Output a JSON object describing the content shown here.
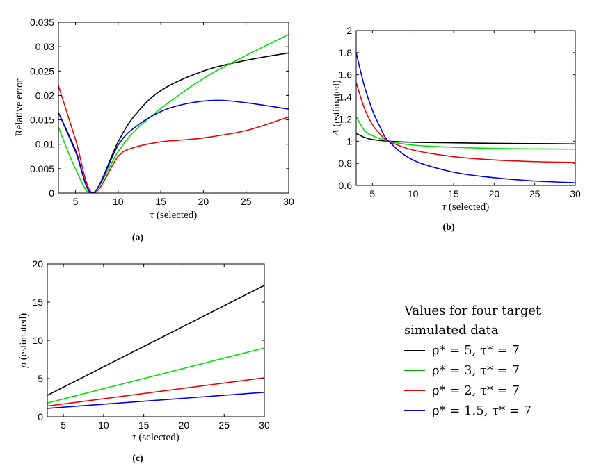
{
  "colors": {
    "black": "#000000",
    "green": "#00e000",
    "red": "#ee0000",
    "blue": "#0000ee",
    "axis": "#000000"
  },
  "legend": {
    "title_line1": "Values for four target",
    "title_line2": "simulated data",
    "entries": [
      {
        "label": "ρ* = 5, τ* = 7",
        "color": "#000000"
      },
      {
        "label": "ρ* = 3, τ* = 7",
        "color": "#00b000"
      },
      {
        "label": "ρ* = 2, τ* = 7",
        "color": "#ee0000"
      },
      {
        "label": "ρ* = 1.5, τ* = 7",
        "color": "#0000ee"
      }
    ]
  },
  "chart_data": [
    {
      "id": "a",
      "type": "line",
      "caption": "(a)",
      "xlabel": "τ (selected)",
      "ylabel": "Relative error",
      "xlim": [
        3,
        30
      ],
      "ylim": [
        0,
        0.035
      ],
      "xticks": [
        5,
        10,
        15,
        20,
        25,
        30
      ],
      "yticks": [
        0,
        0.005,
        0.01,
        0.015,
        0.02,
        0.025,
        0.03,
        0.035
      ],
      "ytick_labels": [
        "0",
        "0.005",
        "0.01",
        "0.015",
        "0.02",
        "0.025",
        "0.03",
        "0.035"
      ],
      "series": [
        {
          "name": "rho5",
          "color": "#000000",
          "x": [
            3,
            5,
            7,
            10,
            12,
            15,
            20,
            25,
            30
          ],
          "y": [
            0.0165,
            0.0088,
            0.0,
            0.0105,
            0.016,
            0.021,
            0.025,
            0.0272,
            0.0287
          ]
        },
        {
          "name": "rho3",
          "color": "#00e000",
          "x": [
            3,
            5,
            7,
            10,
            12,
            15,
            20,
            25,
            30
          ],
          "y": [
            0.0135,
            0.005,
            0.0,
            0.0085,
            0.0128,
            0.0173,
            0.0235,
            0.0282,
            0.0325
          ]
        },
        {
          "name": "rho2",
          "color": "#ee0000",
          "x": [
            3,
            5,
            7,
            10,
            12,
            15,
            17,
            20,
            25,
            30
          ],
          "y": [
            0.022,
            0.011,
            0.0,
            0.0075,
            0.0094,
            0.0105,
            0.0108,
            0.0113,
            0.0128,
            0.0156
          ]
        },
        {
          "name": "rho1.5",
          "color": "#0000ee",
          "x": [
            3,
            5,
            7,
            10,
            12,
            15,
            18,
            21.5,
            25,
            30
          ],
          "y": [
            0.0165,
            0.0085,
            0.0,
            0.0098,
            0.0135,
            0.0167,
            0.0183,
            0.019,
            0.0185,
            0.0172
          ]
        }
      ]
    },
    {
      "id": "b",
      "type": "line",
      "caption": "(b)",
      "xlabel": "τ (selected)",
      "ylabel": "A (estimated)",
      "xlim": [
        3,
        30
      ],
      "ylim": [
        0.6,
        2
      ],
      "xticks": [
        5,
        10,
        15,
        20,
        25,
        30
      ],
      "yticks": [
        0.6,
        0.8,
        1,
        1.2,
        1.4,
        1.6,
        1.8,
        2
      ],
      "ytick_labels": [
        "0.6",
        "0.8",
        "1",
        "1.2",
        "1.4",
        "1.6",
        "1.8",
        "2"
      ],
      "series": [
        {
          "name": "rho5",
          "color": "#000000",
          "x": [
            3,
            4,
            5,
            7,
            10,
            15,
            20,
            25,
            30
          ],
          "y": [
            1.07,
            1.035,
            1.015,
            1.0,
            0.99,
            0.985,
            0.98,
            0.978,
            0.975
          ]
        },
        {
          "name": "rho3",
          "color": "#00e000",
          "x": [
            3,
            4,
            5,
            7,
            10,
            15,
            20,
            25,
            30
          ],
          "y": [
            1.22,
            1.1,
            1.05,
            1.0,
            0.965,
            0.945,
            0.935,
            0.93,
            0.928
          ]
        },
        {
          "name": "rho2",
          "color": "#ee0000",
          "x": [
            3,
            4,
            5,
            6,
            7,
            10,
            15,
            20,
            25,
            30
          ],
          "y": [
            1.53,
            1.3,
            1.15,
            1.06,
            1.0,
            0.92,
            0.86,
            0.83,
            0.815,
            0.808
          ]
        },
        {
          "name": "rho1.5",
          "color": "#0000ee",
          "x": [
            3,
            4,
            5,
            6,
            7,
            10,
            15,
            20,
            25,
            30
          ],
          "y": [
            1.8,
            1.5,
            1.28,
            1.12,
            1.0,
            0.83,
            0.72,
            0.67,
            0.64,
            0.625
          ]
        }
      ]
    },
    {
      "id": "c",
      "type": "line",
      "caption": "(c)",
      "xlabel": "τ (selected)",
      "ylabel": "ρ (estimated)",
      "xlim": [
        3,
        30
      ],
      "ylim": [
        0,
        20
      ],
      "xticks": [
        5,
        10,
        15,
        20,
        25,
        30
      ],
      "yticks": [
        0,
        5,
        10,
        15,
        20
      ],
      "ytick_labels": [
        "0",
        "5",
        "10",
        "15",
        "20"
      ],
      "series": [
        {
          "name": "rho5",
          "color": "#000000",
          "x": [
            3,
            30
          ],
          "y": [
            2.8,
            17.2
          ]
        },
        {
          "name": "rho3",
          "color": "#00e000",
          "x": [
            3,
            30
          ],
          "y": [
            1.8,
            9.0
          ]
        },
        {
          "name": "rho2",
          "color": "#ee0000",
          "x": [
            3,
            30
          ],
          "y": [
            1.4,
            5.1
          ]
        },
        {
          "name": "rho1.5",
          "color": "#0000ee",
          "x": [
            3,
            30
          ],
          "y": [
            1.1,
            3.2
          ]
        }
      ]
    }
  ]
}
